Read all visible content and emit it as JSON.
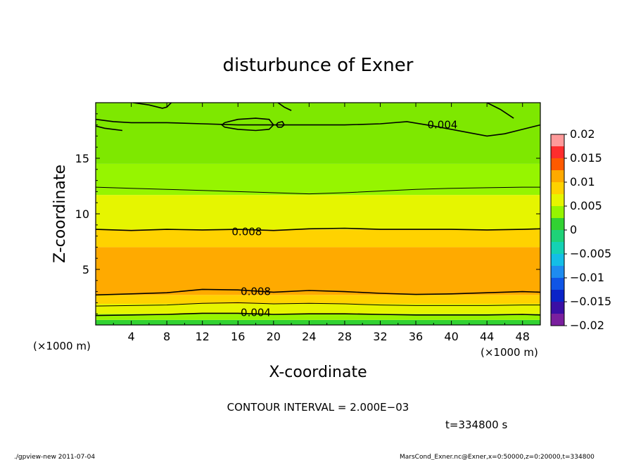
{
  "chart_data": {
    "type": "heatmap",
    "title": "disturbunce of Exner",
    "xlabel": "X-coordinate",
    "ylabel": "Z-coordinate",
    "x_unit_left": "(×1000 m)",
    "x_unit_right": "(×1000 m)",
    "xlim": [
      0,
      50
    ],
    "ylim": [
      0,
      20
    ],
    "x_ticks": [
      4,
      8,
      12,
      16,
      20,
      24,
      28,
      32,
      36,
      40,
      44,
      48
    ],
    "y_ticks": [
      5,
      10,
      15
    ],
    "colorbar": {
      "ticks": [
        "0.02",
        "0.015",
        "0.01",
        "0.005",
        "0",
        "−0.005",
        "−0.01",
        "−0.015",
        "−0.02"
      ],
      "range": [
        -0.02,
        0.02
      ],
      "bands": [
        {
          "from": -0.02,
          "to": -0.0175,
          "color": "#7a1f9e"
        },
        {
          "from": -0.0175,
          "to": -0.015,
          "color": "#3a0fa5"
        },
        {
          "from": -0.015,
          "to": -0.0125,
          "color": "#0a23c8"
        },
        {
          "from": -0.0125,
          "to": -0.01,
          "color": "#0f55e6"
        },
        {
          "from": -0.01,
          "to": -0.0075,
          "color": "#1e8cf0"
        },
        {
          "from": -0.0075,
          "to": -0.005,
          "color": "#14bee6"
        },
        {
          "from": -0.005,
          "to": -0.0025,
          "color": "#14d2b4"
        },
        {
          "from": -0.0025,
          "to": 0.0,
          "color": "#1ed278"
        },
        {
          "from": 0.0,
          "to": 0.0025,
          "color": "#32d232"
        },
        {
          "from": 0.0025,
          "to": 0.005,
          "color": "#96f500"
        },
        {
          "from": 0.005,
          "to": 0.0075,
          "color": "#e6f500"
        },
        {
          "from": 0.0075,
          "to": 0.01,
          "color": "#ffd200"
        },
        {
          "from": 0.01,
          "to": 0.0125,
          "color": "#ffaa00"
        },
        {
          "from": 0.0125,
          "to": 0.015,
          "color": "#ff5a00"
        },
        {
          "from": 0.015,
          "to": 0.0175,
          "color": "#ff2d2d"
        },
        {
          "from": 0.0175,
          "to": 0.02,
          "color": "#ff9a9a"
        }
      ]
    },
    "field_layers": [
      {
        "z": [
          0.0,
          0.45
        ],
        "color": "#32d232"
      },
      {
        "z": [
          0.45,
          1.0
        ],
        "color": "#96f500"
      },
      {
        "z": [
          1.0,
          1.9
        ],
        "color": "#e6f500"
      },
      {
        "z": [
          1.9,
          2.7
        ],
        "color": "#ffd200"
      },
      {
        "z": [
          2.7,
          7.0
        ],
        "color": "#ffaa00"
      },
      {
        "z": [
          7.0,
          8.6
        ],
        "color": "#ffd200"
      },
      {
        "z": [
          8.6,
          11.7
        ],
        "color": "#e6f500"
      },
      {
        "z": [
          11.7,
          14.5
        ],
        "color": "#96f500"
      },
      {
        "z": [
          14.5,
          20.0
        ],
        "color": "#7ee800"
      }
    ],
    "contours": [
      {
        "level": 0.004,
        "x": [
          0,
          4,
          8,
          12,
          16,
          20,
          24,
          28,
          32,
          36,
          40,
          44,
          48,
          50
        ],
        "z": [
          0.85,
          0.9,
          0.95,
          1.05,
          1.05,
          0.95,
          1.0,
          1.0,
          0.95,
          0.9,
          0.9,
          0.9,
          0.95,
          0.9
        ]
      },
      {
        "level": 0.006,
        "x": [
          0,
          4,
          8,
          12,
          16,
          20,
          24,
          28,
          32,
          36,
          40,
          44,
          48,
          50
        ],
        "z": [
          1.7,
          1.75,
          1.8,
          1.95,
          2.0,
          1.9,
          1.95,
          1.9,
          1.8,
          1.75,
          1.75,
          1.75,
          1.8,
          1.8
        ]
      },
      {
        "level": 0.008,
        "x": [
          0,
          4,
          8,
          12,
          16,
          20,
          24,
          28,
          32,
          36,
          40,
          44,
          48,
          50
        ],
        "z": [
          2.7,
          2.8,
          2.9,
          3.2,
          3.15,
          2.95,
          3.1,
          3.0,
          2.85,
          2.75,
          2.8,
          2.9,
          3.0,
          2.95
        ]
      },
      {
        "level": 0.008,
        "x": [
          0,
          4,
          8,
          12,
          16,
          20,
          24,
          28,
          32,
          36,
          40,
          44,
          48,
          50
        ],
        "z": [
          8.6,
          8.5,
          8.6,
          8.55,
          8.6,
          8.5,
          8.65,
          8.7,
          8.6,
          8.6,
          8.6,
          8.55,
          8.6,
          8.65
        ]
      },
      {
        "level": 0.006,
        "x": [
          0,
          4,
          8,
          12,
          16,
          20,
          24,
          28,
          32,
          36,
          40,
          44,
          48,
          50
        ],
        "z": [
          12.4,
          12.3,
          12.2,
          12.1,
          12.0,
          11.9,
          11.8,
          11.9,
          12.05,
          12.2,
          12.3,
          12.35,
          12.4,
          12.4
        ]
      },
      {
        "level": 0.004,
        "x": [
          0,
          2,
          4,
          8,
          12,
          16,
          20,
          24,
          28,
          32,
          35,
          38,
          42,
          44,
          46,
          48,
          50
        ],
        "z": [
          18.5,
          18.3,
          18.2,
          18.2,
          18.1,
          18.0,
          18.0,
          18.0,
          18.0,
          18.1,
          18.3,
          17.9,
          17.3,
          17.0,
          17.2,
          17.6,
          18.0
        ]
      },
      {
        "level": 0.004,
        "x": [
          14.5,
          16,
          18,
          19.5,
          20,
          19.5,
          18,
          16,
          14.5,
          14.2,
          14.5
        ],
        "z": [
          18.2,
          18.5,
          18.6,
          18.5,
          18.0,
          17.6,
          17.5,
          17.6,
          17.8,
          18.0,
          18.2
        ]
      },
      {
        "level": 0.004,
        "x": [
          20.5,
          21.0,
          21.2,
          20.9,
          20.5,
          20.3,
          20.5
        ],
        "z": [
          18.2,
          18.3,
          18.0,
          17.8,
          17.8,
          18.0,
          18.2
        ]
      },
      {
        "level": 0.004,
        "x": [
          0.0,
          1.0,
          2.0,
          3.0
        ],
        "z": [
          17.9,
          17.7,
          17.6,
          17.5
        ]
      },
      {
        "level": 0.004,
        "x": [
          4.2,
          6.0,
          7.5,
          8.0,
          8.5
        ],
        "z": [
          20.0,
          19.8,
          19.5,
          19.6,
          20.0
        ]
      },
      {
        "level": 0.004,
        "x": [
          20.5,
          21.2,
          22.0
        ],
        "z": [
          20.0,
          19.6,
          19.3
        ]
      },
      {
        "level": 0.004,
        "x": [
          44.0,
          45.5,
          47.0
        ],
        "z": [
          20.0,
          19.4,
          18.6
        ]
      }
    ],
    "contour_labels": [
      {
        "text": "0.004",
        "x": 39.0,
        "z": 18.0
      },
      {
        "text": "0.008",
        "x": 17.0,
        "z": 8.4
      },
      {
        "text": "0.008",
        "x": 18.0,
        "z": 3.0
      },
      {
        "text": "0.004",
        "x": 18.0,
        "z": 1.1
      }
    ]
  },
  "annotations": {
    "contour_interval": "CONTOUR INTERVAL = 2.000E−03",
    "time": "t=334800 s",
    "footer_left": "./gpview-new   2011-07-04",
    "footer_right": "MarsCond_Exner.nc@Exner,x=0:50000,z=0:20000,t=334800"
  }
}
